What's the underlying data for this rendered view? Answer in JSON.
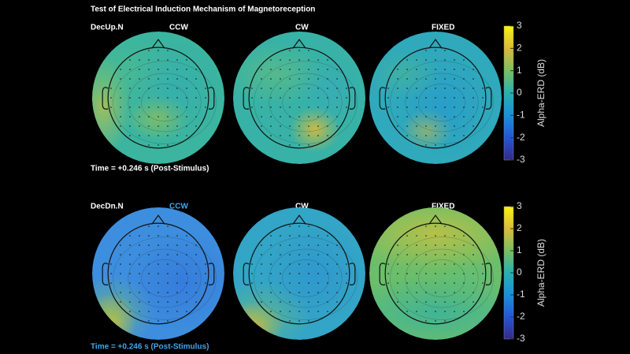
{
  "title": "Test of Electrical Induction Mechanism of Magnetoreception",
  "rows": [
    {
      "label": "DecUp.N",
      "columns": [
        "CCW",
        "CW",
        "FIXED"
      ],
      "time": "Time = +0.246 s (Post-Stimulus)",
      "colorbar": {
        "label": "Alpha-ERD (dB)",
        "ylim": [
          -3,
          3
        ],
        "ticks": [
          3,
          2,
          1,
          0,
          -1,
          -2,
          -3
        ]
      }
    },
    {
      "label": "DecDn.N",
      "columns": [
        "CCW",
        "CW",
        "FIXED"
      ],
      "time": "Time = +0.246 s (Post-Stimulus)",
      "accent": "#3fa6f2",
      "colorbar": {
        "label": "Alpha-ERD (dB)",
        "ylim": [
          -3,
          3
        ],
        "ticks": [
          3,
          2,
          1,
          0,
          -1,
          -2,
          -3
        ]
      }
    }
  ]
}
